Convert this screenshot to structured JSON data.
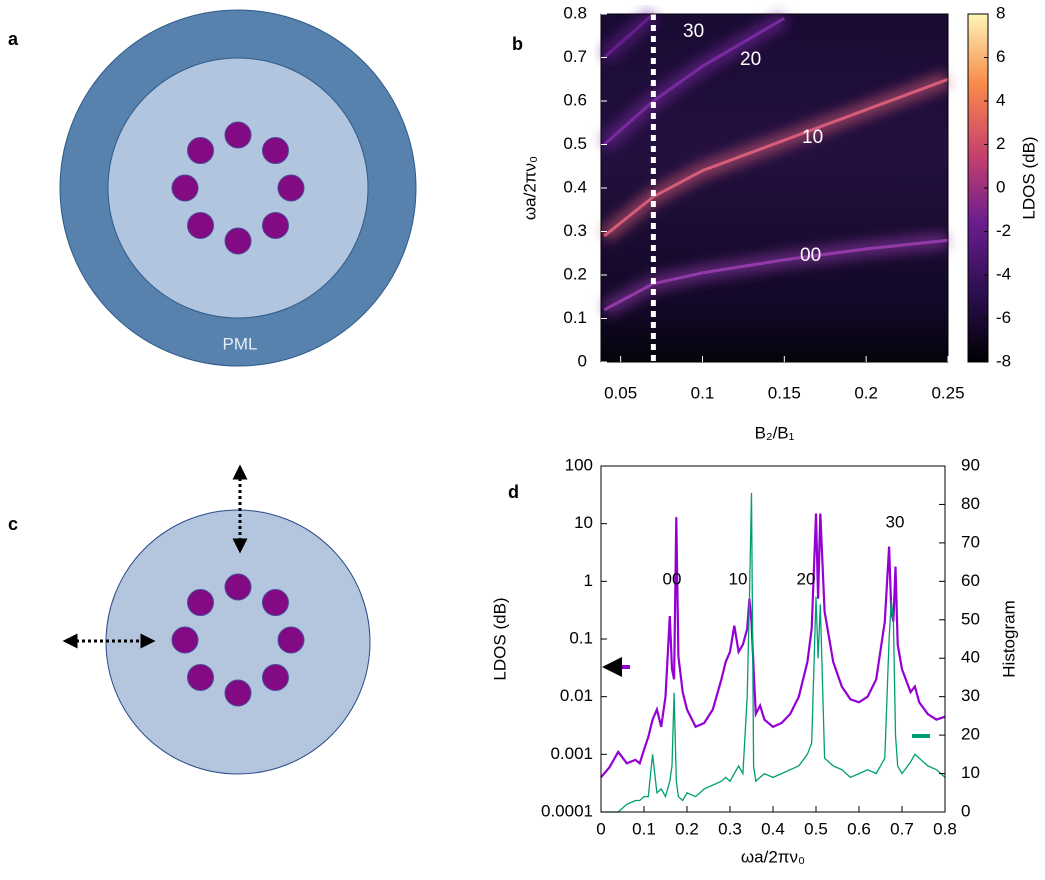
{
  "panel_labels": [
    "a",
    "b",
    "c",
    "d"
  ],
  "diagram_a": {
    "outer_label": "PML"
  },
  "chart_data": [
    {
      "type": "heatmap",
      "xlabel": "B₂/B₁",
      "ylabel": "ωa/2πν₀",
      "colorbar_label": "LDOS (dB)",
      "xlim": [
        0.038,
        0.25
      ],
      "ylim": [
        0,
        0.8
      ],
      "xticks": [
        0.05,
        0.1,
        0.15,
        0.2,
        0.25
      ],
      "yticks": [
        0,
        0.1,
        0.2,
        0.3,
        0.4,
        0.5,
        0.6,
        0.7,
        0.8
      ],
      "clim": [
        -8,
        8
      ],
      "cticks": [
        -8,
        -6,
        -4,
        -2,
        0,
        2,
        4,
        6,
        8
      ],
      "colormap": [
        "#000004",
        "#2c0f4f",
        "#6b1d8f",
        "#c8426c",
        "#f88b4a",
        "#fcf6b8"
      ],
      "reference_line_x": 0.07,
      "x": [
        0.04,
        0.07,
        0.1,
        0.15,
        0.2,
        0.25
      ],
      "series": [
        {
          "name": "00",
          "color": "#9a3db0",
          "values": [
            0.12,
            0.18,
            0.205,
            0.235,
            0.26,
            0.28
          ]
        },
        {
          "name": "10",
          "color": "#e0607c",
          "values": [
            0.29,
            0.38,
            0.44,
            0.51,
            0.58,
            0.65
          ]
        },
        {
          "name": "20",
          "color": "#7e2ca6",
          "values": [
            0.5,
            0.6,
            0.68,
            0.79,
            null,
            null
          ]
        },
        {
          "name": "30",
          "color": "#6a2094",
          "values": [
            0.7,
            0.8,
            null,
            null,
            null,
            null
          ]
        }
      ]
    },
    {
      "type": "line",
      "xlabel": "ωa/2πν₀",
      "ylabel": "LDOS (dB)",
      "y2label": "Histogram",
      "yscale": "log",
      "xlim": [
        0,
        0.8
      ],
      "ylim": [
        0.0001,
        100
      ],
      "y2lim": [
        0,
        90
      ],
      "xticks": [
        0,
        0.1,
        0.2,
        0.3,
        0.4,
        0.5,
        0.6,
        0.7,
        0.8
      ],
      "yticks": [
        0.0001,
        0.001,
        0.01,
        0.1,
        1,
        10,
        100
      ],
      "y2ticks": [
        0,
        10,
        20,
        30,
        40,
        50,
        60,
        70,
        80,
        90
      ],
      "annotations": [
        "00",
        "10",
        "20",
        "30"
      ],
      "x": [
        0,
        0.02,
        0.04,
        0.06,
        0.08,
        0.09,
        0.1,
        0.11,
        0.12,
        0.13,
        0.14,
        0.15,
        0.16,
        0.165,
        0.17,
        0.175,
        0.18,
        0.19,
        0.2,
        0.22,
        0.24,
        0.26,
        0.28,
        0.29,
        0.3,
        0.31,
        0.32,
        0.33,
        0.34,
        0.345,
        0.35,
        0.355,
        0.36,
        0.37,
        0.38,
        0.4,
        0.42,
        0.44,
        0.46,
        0.48,
        0.49,
        0.5,
        0.505,
        0.51,
        0.52,
        0.54,
        0.56,
        0.58,
        0.6,
        0.62,
        0.64,
        0.66,
        0.67,
        0.675,
        0.68,
        0.685,
        0.69,
        0.7,
        0.72,
        0.73,
        0.74,
        0.76,
        0.78,
        0.8
      ],
      "series": [
        {
          "color": "#9400d3",
          "values": [
            0.0004,
            0.0006,
            0.0011,
            0.0007,
            0.0008,
            0.0007,
            0.0012,
            0.002,
            0.004,
            0.006,
            0.003,
            0.01,
            0.25,
            0.03,
            0.02,
            13,
            0.05,
            0.012,
            0.006,
            0.003,
            0.0035,
            0.006,
            0.02,
            0.04,
            0.06,
            0.17,
            0.06,
            0.08,
            0.15,
            0.5,
            0.2,
            0.03,
            0.005,
            0.007,
            0.004,
            0.003,
            0.0035,
            0.005,
            0.01,
            0.04,
            0.15,
            15,
            0.5,
            15,
            0.3,
            0.04,
            0.015,
            0.009,
            0.008,
            0.01,
            0.02,
            0.2,
            4,
            0.3,
            0.2,
            1.8,
            0.08,
            0.03,
            0.012,
            0.015,
            0.008,
            0.005,
            0.004,
            0.0045
          ]
        },
        {
          "color": "#009e73",
          "axis": "y2",
          "values": [
            0,
            0,
            0,
            2,
            3,
            3,
            4,
            4,
            15,
            5,
            6,
            4,
            8,
            12,
            31,
            8,
            4,
            3,
            5,
            4,
            6,
            7,
            8,
            9,
            8,
            10,
            12,
            10,
            30,
            55,
            83,
            12,
            8,
            9,
            10,
            9,
            10,
            11,
            12,
            15,
            18,
            56,
            40,
            54,
            14,
            12,
            11,
            9,
            10,
            11,
            10,
            14,
            45,
            55,
            50,
            20,
            12,
            10,
            13,
            15,
            14,
            12,
            11,
            9
          ]
        }
      ]
    }
  ]
}
